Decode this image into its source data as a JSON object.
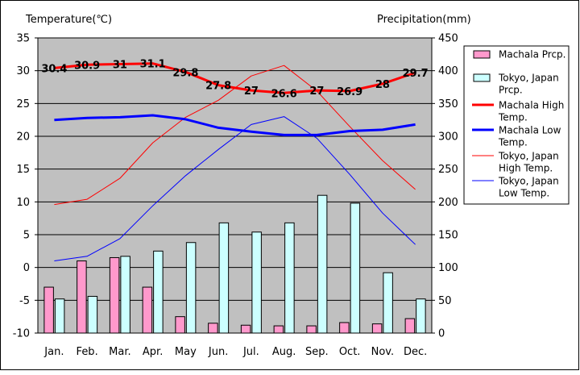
{
  "colors": {
    "plot_bg": "#c0c0c0",
    "machala_prcp": "#ff99cc",
    "tokyo_prcp": "#ccffff",
    "machala_high": "#ff0000",
    "machala_low": "#0000ff",
    "tokyo_high": "#ff0000",
    "tokyo_low": "#0000ff"
  },
  "chart_data": {
    "type": "bar+line",
    "left_axis_title": "Temperature(℃)",
    "right_axis_title": "Precipitation(mm)",
    "months": [
      "Jan.",
      "Feb.",
      "Mar.",
      "Apr.",
      "May",
      "Jun.",
      "Jul.",
      "Aug.",
      "Sep.",
      "Oct.",
      "Nov.",
      "Dec."
    ],
    "temp_ylim": [
      -10,
      35
    ],
    "temp_ticks": [
      "35",
      "30",
      "25",
      "20",
      "15",
      "10",
      "5",
      "0",
      "-5",
      "-10"
    ],
    "prcp_ylim": [
      0,
      450
    ],
    "prcp_ticks": [
      "450",
      "400",
      "350",
      "300",
      "250",
      "200",
      "150",
      "100",
      "50",
      "0"
    ],
    "grid": true,
    "legend_position": "right",
    "legend": [
      {
        "label": "Machala Prcp.",
        "kind": "bar",
        "color_key": "machala_prcp"
      },
      {
        "label": "Tokyo, Japan Prcp.",
        "kind": "bar",
        "color_key": "tokyo_prcp"
      },
      {
        "label": "Machala High Temp.",
        "kind": "thickline",
        "color_key": "machala_high"
      },
      {
        "label": "Machala Low Temp.",
        "kind": "thickline",
        "color_key": "machala_low"
      },
      {
        "label": "Tokyo, Japan High Temp.",
        "kind": "thinline",
        "color_key": "tokyo_high"
      },
      {
        "label": "Tokyo, Japan Low Temp.",
        "kind": "thinline",
        "color_key": "tokyo_low"
      }
    ],
    "machala_prcp": [
      70,
      110,
      115,
      70,
      25,
      15,
      12,
      11,
      11,
      16,
      14,
      22
    ],
    "tokyo_prcp": [
      52,
      56,
      117,
      125,
      138,
      168,
      154,
      168,
      210,
      198,
      92,
      52
    ],
    "machala_high": [
      30.4,
      30.9,
      31.0,
      31.1,
      29.8,
      27.8,
      27.0,
      26.6,
      27.0,
      26.9,
      28.0,
      29.7
    ],
    "machala_high_labels": [
      "30.4",
      "30.9",
      "31",
      "31.1",
      "29.8",
      "27.8",
      "27",
      "26.6",
      "27",
      "26.9",
      "28",
      "29.7"
    ],
    "machala_low": [
      22.5,
      22.8,
      22.9,
      23.2,
      22.6,
      21.3,
      20.7,
      20.2,
      20.2,
      20.8,
      21.0,
      21.8
    ],
    "tokyo_high": [
      9.6,
      10.4,
      13.6,
      19.0,
      22.9,
      25.5,
      29.2,
      30.8,
      26.9,
      21.5,
      16.3,
      11.9
    ],
    "tokyo_low": [
      1.0,
      1.7,
      4.4,
      9.4,
      14.0,
      18.0,
      21.8,
      23.0,
      19.7,
      14.2,
      8.3,
      3.5
    ]
  }
}
